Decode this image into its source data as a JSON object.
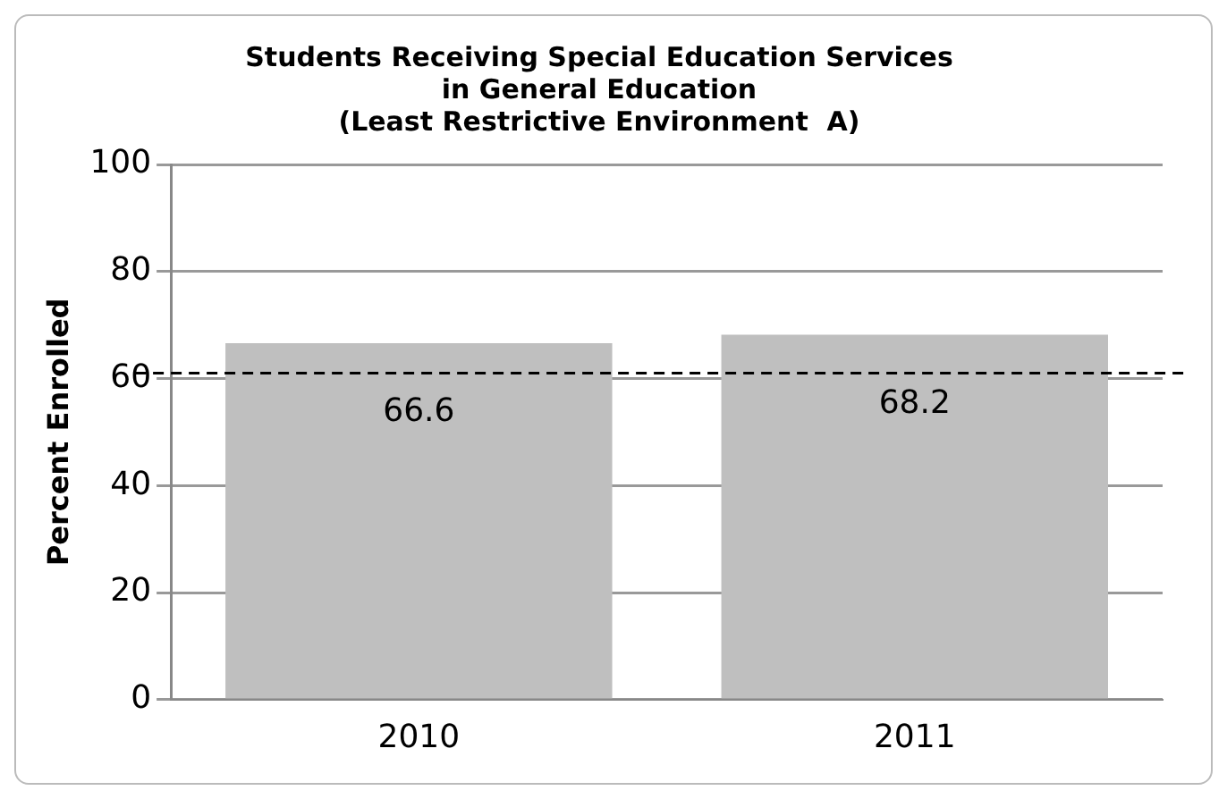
{
  "chart_data": {
    "type": "bar",
    "title": "Students Receiving Special Education Services\nin General Education\n(Least Restrictive Environment  A)",
    "ylabel": "Percent Enrolled",
    "categories": [
      "2010",
      "2011"
    ],
    "values": [
      66.6,
      68.2
    ],
    "color": "#bfbfbf",
    "ylim": [
      0,
      100
    ],
    "yticks": [
      0,
      20,
      40,
      60,
      80,
      100
    ],
    "grid": "y",
    "legend": false,
    "data_labels": true,
    "ref_lines": [
      {
        "axis": "y",
        "value": 61,
        "color": "#000000",
        "line_style": "dashed"
      }
    ]
  }
}
